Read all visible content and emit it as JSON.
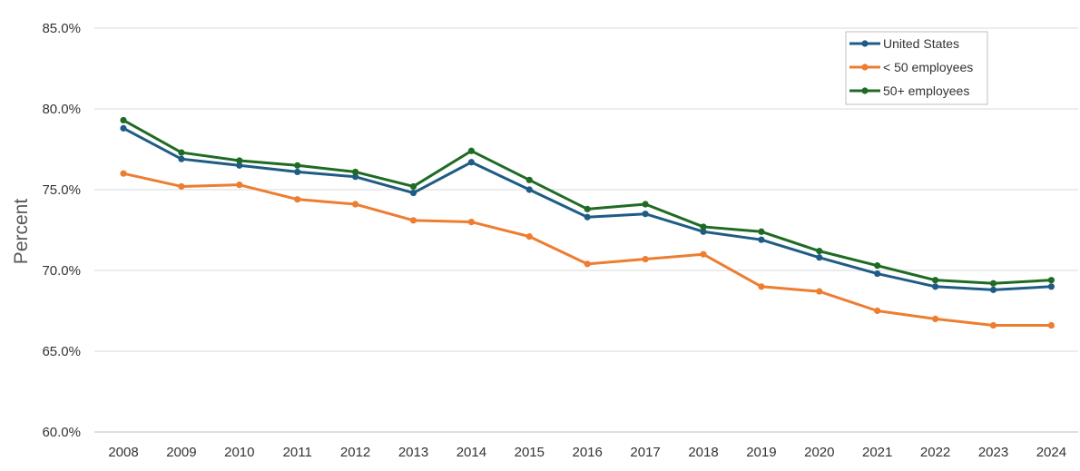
{
  "chart_data": {
    "type": "line",
    "ylabel": "Percent",
    "xlabel": "",
    "ylim": [
      60.0,
      85.0
    ],
    "y_ticks": [
      "60.0%",
      "65.0%",
      "70.0%",
      "75.0%",
      "80.0%",
      "85.0%"
    ],
    "y_tick_values": [
      60,
      65,
      70,
      75,
      80,
      85
    ],
    "grid": "horizontal",
    "legend_position": "top-right",
    "categories": [
      "2008",
      "2009",
      "2010",
      "2011",
      "2012",
      "2013",
      "2014",
      "2015",
      "2016",
      "2017",
      "2018",
      "2019",
      "2020",
      "2021",
      "2022",
      "2023",
      "2024"
    ],
    "series": [
      {
        "name": "United States",
        "color": "#1f5c85",
        "values": [
          78.8,
          76.9,
          76.5,
          76.1,
          75.8,
          74.8,
          76.7,
          75.0,
          73.3,
          73.5,
          72.4,
          71.9,
          70.8,
          69.8,
          69.0,
          68.8,
          69.0
        ]
      },
      {
        "name": "< 50 employees",
        "color": "#ed7d31",
        "values": [
          76.0,
          75.2,
          75.3,
          74.4,
          74.1,
          73.1,
          73.0,
          72.1,
          70.4,
          70.7,
          71.0,
          69.0,
          68.7,
          67.5,
          67.0,
          66.6,
          66.6
        ]
      },
      {
        "name": "50+ employees",
        "color": "#1f6b24",
        "values": [
          79.3,
          77.3,
          76.8,
          76.5,
          76.1,
          75.2,
          77.4,
          75.6,
          73.8,
          74.1,
          72.7,
          72.4,
          71.2,
          70.3,
          69.4,
          69.2,
          69.4
        ]
      }
    ]
  }
}
